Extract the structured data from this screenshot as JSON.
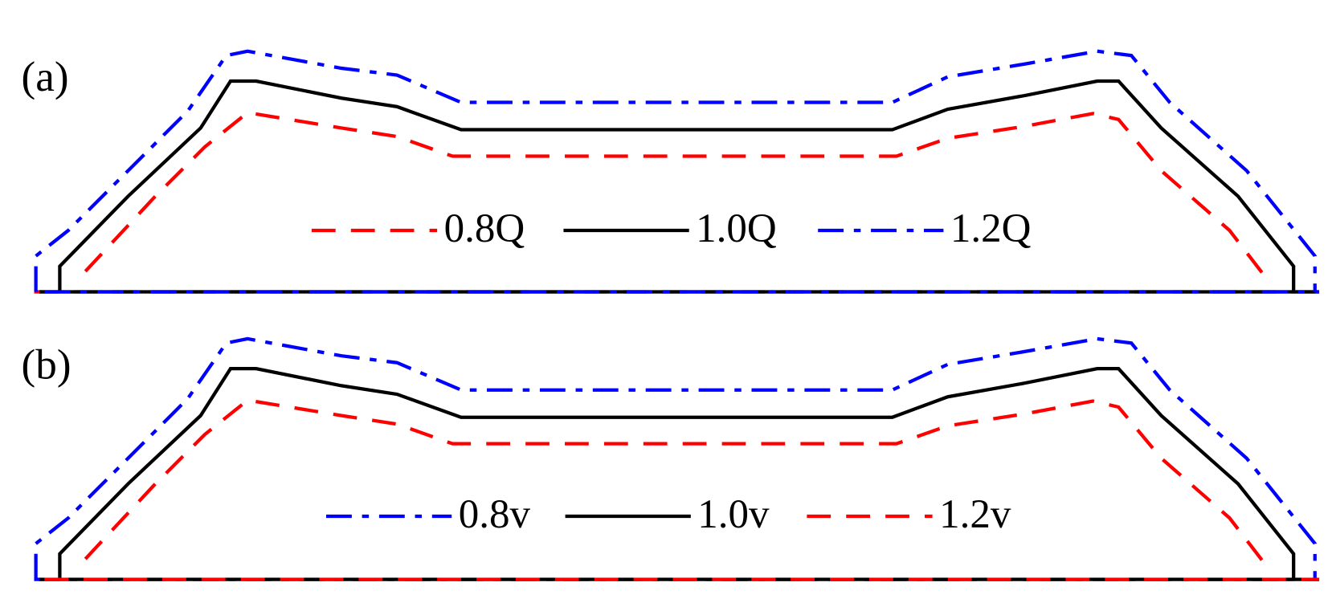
{
  "panels": [
    {
      "label": "(a)",
      "legend": [
        {
          "label": "0.8Q",
          "color": "#ff0000",
          "style": "dashed"
        },
        {
          "label": "1.0Q",
          "color": "#000000",
          "style": "solid"
        },
        {
          "label": "1.2Q",
          "color": "#0000ff",
          "style": "dashdot"
        }
      ]
    },
    {
      "label": "(b)",
      "legend": [
        {
          "label": "0.8v",
          "color": "#0000ff",
          "style": "dashdot"
        },
        {
          "label": "1.0v",
          "color": "#000000",
          "style": "solid"
        },
        {
          "label": "1.2v",
          "color": "#ff0000",
          "style": "dashed"
        }
      ]
    }
  ]
}
